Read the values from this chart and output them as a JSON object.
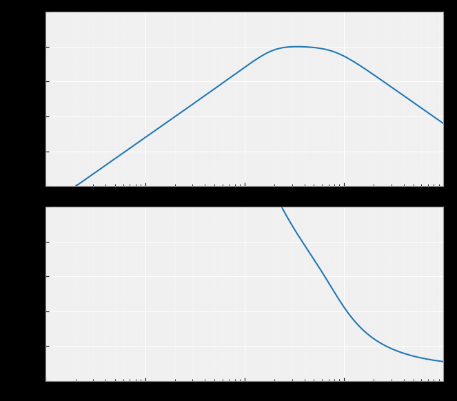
{
  "line_color": "#1f77b4",
  "line_width": 1.5,
  "background_color": "#000000",
  "axes_facecolor": "#f0f0f0",
  "freq_min": 1,
  "freq_max": 10000,
  "mag_ylim": [
    -80,
    20
  ],
  "phase_ylim": [
    -200,
    50
  ],
  "f0": 200,
  "zeta": 0.6,
  "extra_pole_freq": 800,
  "extra_pole_zeta": 0.7
}
